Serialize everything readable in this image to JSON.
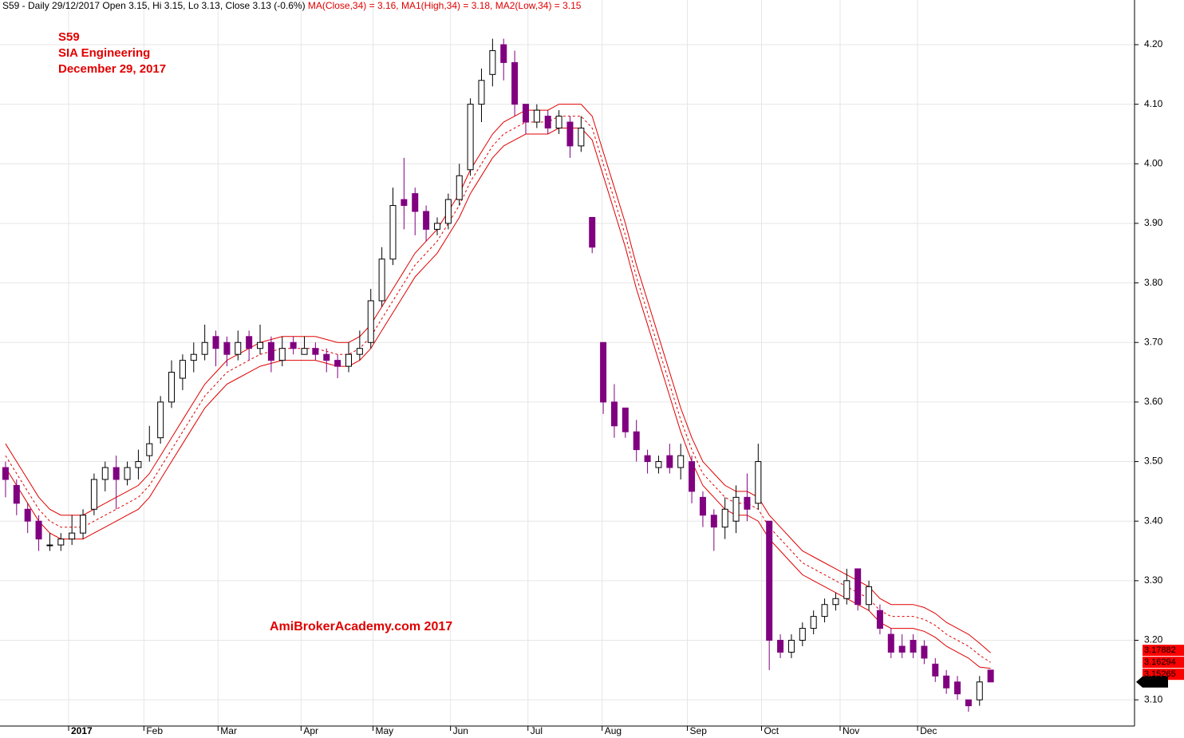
{
  "chart_data": {
    "type": "candlestick",
    "header": {
      "info": "S59 - Daily 29/12/2017 Open 3.15, Hi 3.15, Lo 3.13, Close 3.13 (-0.6%)",
      "ma": [
        "MA(Close,34) = 3.16,",
        "MA1(High,34) = 3.18,",
        "MA2(Low,34) = 3.15"
      ]
    },
    "title_lines": [
      "S59",
      "SIA Engineering",
      "December 29, 2017"
    ],
    "watermark": "AmiBrokerAcademy.com  2017",
    "up_color": "#ffffff",
    "down_color": "#800080",
    "grid": true,
    "categories": [
      null,
      null,
      null,
      null,
      null,
      null,
      null,
      null,
      null,
      null,
      null,
      null,
      null,
      null,
      null,
      null,
      null,
      null,
      null,
      null,
      null,
      null,
      null,
      null,
      null,
      null,
      null,
      null,
      null,
      null,
      null,
      null,
      null,
      null,
      null,
      null,
      null,
      null,
      null,
      null,
      null,
      null,
      null,
      null,
      null,
      null,
      null,
      null,
      null,
      null,
      null,
      null,
      null,
      null,
      null,
      null,
      null,
      null,
      null,
      null,
      null,
      null,
      null,
      null,
      null,
      null,
      null,
      null,
      null,
      null,
      null,
      null,
      null,
      null,
      null,
      null,
      null,
      null,
      null,
      null,
      null,
      null,
      null,
      null,
      null,
      null,
      null,
      null,
      null,
      null
    ],
    "open": [
      3.49,
      3.46,
      3.42,
      3.4,
      3.36,
      3.36,
      3.37,
      3.38,
      3.42,
      3.47,
      3.49,
      3.47,
      3.49,
      3.51,
      3.54,
      3.6,
      3.64,
      3.67,
      3.68,
      3.71,
      3.7,
      3.68,
      3.71,
      3.69,
      3.7,
      3.67,
      3.7,
      3.68,
      3.69,
      3.68,
      3.67,
      3.66,
      3.68,
      3.7,
      3.77,
      3.84,
      3.94,
      3.95,
      3.92,
      3.89,
      3.9,
      3.94,
      3.99,
      4.1,
      4.15,
      4.2,
      4.17,
      4.1,
      4.07,
      4.08,
      4.06,
      4.07,
      4.03,
      3.91,
      3.7,
      3.6,
      3.59,
      3.55,
      3.51,
      3.49,
      3.51,
      3.49,
      3.5,
      3.44,
      3.41,
      3.39,
      3.4,
      3.44,
      3.43,
      3.4,
      3.2,
      3.18,
      3.2,
      3.22,
      3.24,
      3.26,
      3.27,
      3.32,
      3.26,
      3.25,
      3.21,
      3.19,
      3.2,
      3.19,
      3.16,
      3.14,
      3.13,
      3.1,
      3.1,
      3.15
    ],
    "high": [
      3.5,
      3.47,
      3.43,
      3.41,
      3.38,
      3.38,
      3.41,
      3.42,
      3.48,
      3.5,
      3.51,
      3.5,
      3.52,
      3.56,
      3.61,
      3.67,
      3.68,
      3.7,
      3.73,
      3.72,
      3.71,
      3.72,
      3.72,
      3.73,
      3.71,
      3.71,
      3.71,
      3.71,
      3.7,
      3.69,
      3.68,
      3.7,
      3.72,
      3.79,
      3.86,
      3.96,
      4.01,
      3.96,
      3.93,
      3.91,
      3.95,
      4.0,
      4.11,
      4.16,
      4.21,
      4.21,
      4.19,
      4.1,
      4.1,
      4.09,
      4.09,
      4.08,
      4.08,
      3.91,
      3.7,
      3.63,
      3.59,
      3.57,
      3.52,
      3.51,
      3.53,
      3.53,
      3.51,
      3.45,
      3.42,
      3.44,
      3.46,
      3.48,
      3.53,
      3.4,
      3.21,
      3.21,
      3.23,
      3.25,
      3.27,
      3.28,
      3.32,
      3.32,
      3.3,
      3.26,
      3.22,
      3.21,
      3.21,
      3.2,
      3.17,
      3.15,
      3.14,
      3.1,
      3.14,
      3.15
    ],
    "low": [
      3.44,
      3.41,
      3.38,
      3.35,
      3.35,
      3.35,
      3.36,
      3.37,
      3.41,
      3.45,
      3.42,
      3.46,
      3.47,
      3.5,
      3.53,
      3.59,
      3.62,
      3.65,
      3.67,
      3.66,
      3.66,
      3.67,
      3.67,
      3.68,
      3.65,
      3.66,
      3.68,
      3.68,
      3.67,
      3.65,
      3.64,
      3.65,
      3.67,
      3.69,
      3.76,
      3.83,
      3.89,
      3.88,
      3.87,
      3.88,
      3.89,
      3.93,
      3.98,
      4.07,
      4.13,
      4.14,
      4.08,
      4.05,
      4.06,
      4.05,
      4.05,
      4.01,
      4.02,
      3.85,
      3.58,
      3.54,
      3.54,
      3.5,
      3.48,
      3.48,
      3.48,
      3.47,
      3.43,
      3.39,
      3.35,
      3.37,
      3.38,
      3.4,
      3.42,
      3.15,
      3.17,
      3.17,
      3.19,
      3.21,
      3.23,
      3.25,
      3.26,
      3.25,
      3.25,
      3.21,
      3.17,
      3.17,
      3.17,
      3.16,
      3.13,
      3.11,
      3.1,
      3.08,
      3.09,
      3.13
    ],
    "close": [
      3.47,
      3.43,
      3.4,
      3.37,
      3.36,
      3.37,
      3.38,
      3.41,
      3.47,
      3.49,
      3.47,
      3.49,
      3.5,
      3.53,
      3.6,
      3.65,
      3.67,
      3.68,
      3.7,
      3.69,
      3.68,
      3.7,
      3.69,
      3.7,
      3.67,
      3.69,
      3.69,
      3.69,
      3.68,
      3.67,
      3.66,
      3.68,
      3.69,
      3.77,
      3.84,
      3.93,
      3.93,
      3.92,
      3.89,
      3.9,
      3.94,
      3.98,
      4.1,
      4.14,
      4.19,
      4.17,
      4.1,
      4.07,
      4.09,
      4.06,
      4.08,
      4.03,
      4.06,
      3.86,
      3.6,
      3.56,
      3.55,
      3.52,
      3.5,
      3.5,
      3.49,
      3.51,
      3.45,
      3.41,
      3.39,
      3.42,
      3.44,
      3.42,
      3.5,
      3.2,
      3.18,
      3.2,
      3.22,
      3.24,
      3.26,
      3.27,
      3.3,
      3.26,
      3.29,
      3.22,
      3.18,
      3.18,
      3.18,
      3.17,
      3.14,
      3.12,
      3.11,
      3.09,
      3.13,
      3.13
    ],
    "ma_series": [
      {
        "color": "#e00000",
        "dashed": true,
        "values": [
          3.51,
          3.48,
          3.45,
          3.42,
          3.4,
          3.39,
          3.39,
          3.39,
          3.4,
          3.41,
          3.42,
          3.43,
          3.44,
          3.46,
          3.49,
          3.52,
          3.55,
          3.58,
          3.61,
          3.63,
          3.65,
          3.66,
          3.67,
          3.68,
          3.685,
          3.69,
          3.69,
          3.69,
          3.69,
          3.685,
          3.68,
          3.68,
          3.69,
          3.71,
          3.74,
          3.77,
          3.8,
          3.83,
          3.85,
          3.87,
          3.9,
          3.93,
          3.97,
          4.0,
          4.03,
          4.05,
          4.06,
          4.07,
          4.07,
          4.07,
          4.08,
          4.08,
          4.08,
          4.06,
          4.0,
          3.94,
          3.88,
          3.81,
          3.75,
          3.69,
          3.63,
          3.57,
          3.52,
          3.48,
          3.46,
          3.44,
          3.43,
          3.43,
          3.42,
          3.39,
          3.37,
          3.35,
          3.33,
          3.32,
          3.31,
          3.3,
          3.29,
          3.28,
          3.27,
          3.25,
          3.24,
          3.24,
          3.24,
          3.235,
          3.225,
          3.21,
          3.2,
          3.19,
          3.175,
          3.16294
        ]
      },
      {
        "color": "#e00000",
        "dashed": false,
        "values": [
          3.53,
          3.5,
          3.47,
          3.44,
          3.42,
          3.41,
          3.41,
          3.41,
          3.42,
          3.43,
          3.44,
          3.45,
          3.46,
          3.48,
          3.51,
          3.54,
          3.57,
          3.6,
          3.63,
          3.65,
          3.67,
          3.68,
          3.69,
          3.7,
          3.705,
          3.71,
          3.71,
          3.71,
          3.71,
          3.705,
          3.7,
          3.7,
          3.71,
          3.73,
          3.76,
          3.79,
          3.82,
          3.85,
          3.87,
          3.89,
          3.92,
          3.95,
          3.99,
          4.02,
          4.05,
          4.07,
          4.08,
          4.09,
          4.09,
          4.09,
          4.1,
          4.1,
          4.1,
          4.08,
          4.02,
          3.96,
          3.9,
          3.83,
          3.77,
          3.71,
          3.65,
          3.59,
          3.54,
          3.5,
          3.48,
          3.46,
          3.45,
          3.45,
          3.44,
          3.41,
          3.39,
          3.37,
          3.35,
          3.34,
          3.33,
          3.32,
          3.31,
          3.3,
          3.29,
          3.27,
          3.26,
          3.26,
          3.26,
          3.255,
          3.245,
          3.23,
          3.22,
          3.21,
          3.195,
          3.17882
        ]
      },
      {
        "color": "#e00000",
        "dashed": false,
        "values": [
          3.49,
          3.46,
          3.43,
          3.4,
          3.38,
          3.37,
          3.37,
          3.37,
          3.38,
          3.39,
          3.4,
          3.41,
          3.42,
          3.44,
          3.47,
          3.5,
          3.53,
          3.56,
          3.59,
          3.61,
          3.63,
          3.64,
          3.65,
          3.66,
          3.665,
          3.67,
          3.67,
          3.67,
          3.67,
          3.665,
          3.66,
          3.66,
          3.67,
          3.69,
          3.72,
          3.75,
          3.78,
          3.81,
          3.83,
          3.85,
          3.88,
          3.91,
          3.95,
          3.98,
          4.01,
          4.03,
          4.04,
          4.05,
          4.05,
          4.05,
          4.06,
          4.06,
          4.06,
          4.04,
          3.98,
          3.92,
          3.86,
          3.79,
          3.73,
          3.67,
          3.61,
          3.55,
          3.5,
          3.46,
          3.44,
          3.42,
          3.41,
          3.41,
          3.4,
          3.37,
          3.35,
          3.33,
          3.31,
          3.3,
          3.29,
          3.28,
          3.27,
          3.26,
          3.25,
          3.23,
          3.22,
          3.22,
          3.22,
          3.215,
          3.205,
          3.19,
          3.18,
          3.17,
          3.155,
          3.15265
        ]
      }
    ],
    "xlim": [
      -0.5,
      102
    ],
    "ylim": [
      3.056,
      4.275
    ],
    "xticks": [
      {
        "value": 5.7,
        "label": "2017"
      },
      {
        "value": 12.5,
        "label": "Feb"
      },
      {
        "value": 19.2,
        "label": "Mar"
      },
      {
        "value": 26.7,
        "label": "Apr"
      },
      {
        "value": 33.2,
        "label": "May"
      },
      {
        "value": 40.2,
        "label": "Jun"
      },
      {
        "value": 47.2,
        "label": "Jul"
      },
      {
        "value": 53.9,
        "label": "Aug"
      },
      {
        "value": 61.6,
        "label": "Sep"
      },
      {
        "value": 68.3,
        "label": "Oct"
      },
      {
        "value": 75.4,
        "label": "Nov"
      },
      {
        "value": 82.4,
        "label": "Dec"
      }
    ],
    "yticks": [
      {
        "value": 3.1,
        "label": "3.10"
      },
      {
        "value": 3.2,
        "label": "3.20"
      },
      {
        "value": 3.3,
        "label": "3.30"
      },
      {
        "value": 3.4,
        "label": "3.40"
      },
      {
        "value": 3.5,
        "label": "3.50"
      },
      {
        "value": 3.6,
        "label": "3.60"
      },
      {
        "value": 3.7,
        "label": "3.70"
      },
      {
        "value": 3.8,
        "label": "3.80"
      },
      {
        "value": 3.9,
        "label": "3.90"
      },
      {
        "value": 4.0,
        "label": "4.00"
      },
      {
        "value": 4.1,
        "label": "4.10"
      },
      {
        "value": 4.2,
        "label": "4.20"
      }
    ]
  }
}
